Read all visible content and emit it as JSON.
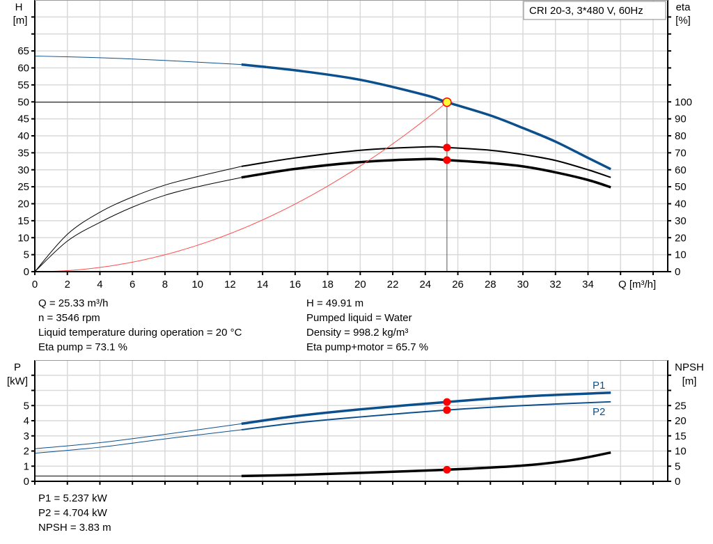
{
  "chart_data": [
    {
      "type": "line",
      "title": "CRI 20-3, 3*480 V, 60Hz",
      "xlabel": "Q [m³/h]",
      "ylabel_left": [
        "H",
        "[m]"
      ],
      "ylabel_right": [
        "eta",
        "[%]"
      ],
      "xlim": [
        0,
        38.9
      ],
      "ylim_left": [
        0,
        80
      ],
      "ylim_right": [
        0,
        160
      ],
      "grid": true,
      "x_ticks": [
        0,
        2,
        4,
        6,
        8,
        10,
        12,
        14,
        16,
        18,
        20,
        22,
        24,
        26,
        28,
        30,
        32,
        34
      ],
      "y_ticks_left": [
        0,
        5,
        10,
        15,
        20,
        25,
        30,
        35,
        40,
        45,
        50,
        55,
        60,
        65
      ],
      "y_ticks_right": [
        0,
        10,
        20,
        30,
        40,
        50,
        60,
        70,
        80,
        90,
        100
      ],
      "series": [
        {
          "id": "H",
          "axis": "left",
          "color": "#0b4f8c",
          "thin_until": 12.7,
          "x": [
            0,
            4,
            8,
            12.7,
            16,
            20,
            24,
            25.33,
            28,
            30,
            32,
            34,
            35.4
          ],
          "y": [
            63.5,
            63.0,
            62.2,
            61.0,
            59.3,
            56.5,
            52.0,
            49.91,
            46.0,
            42.3,
            38.3,
            33.5,
            30.2
          ]
        },
        {
          "id": "eta_pump",
          "axis": "right",
          "color": "#000000",
          "thin_until": 12.7,
          "x": [
            0,
            2,
            4,
            6,
            8,
            10,
            12.7,
            16,
            20,
            24,
            25.33,
            28,
            30,
            32,
            34,
            35.4
          ],
          "y": [
            0,
            22,
            35,
            44,
            51,
            56,
            62,
            67,
            71.5,
            73.5,
            73.1,
            71.5,
            69,
            65.5,
            60,
            55.5
          ]
        },
        {
          "id": "eta_pump_motor",
          "axis": "right",
          "color": "#000000",
          "thin_until": 12.7,
          "bold": true,
          "x": [
            0,
            2,
            4,
            6,
            8,
            10,
            12.7,
            16,
            20,
            24,
            25.33,
            28,
            30,
            32,
            34,
            35.4
          ],
          "y": [
            0,
            18,
            29,
            38,
            45,
            50,
            55.5,
            60.5,
            64.5,
            66.3,
            65.7,
            64,
            62,
            58.5,
            54,
            49.7
          ]
        },
        {
          "id": "system_curve",
          "axis": "left",
          "color": "#ff4d4d",
          "type": "parabola",
          "through": [
            25.33,
            49.91
          ]
        }
      ],
      "operating_point": {
        "Q": 25.33,
        "H": 49.91,
        "eta_pump": 73.1,
        "eta_pump_motor": 65.7
      }
    },
    {
      "type": "line",
      "ylabel_left": [
        "P",
        "[kW]"
      ],
      "ylabel_right": [
        "NPSH",
        "[m]"
      ],
      "xlim": [
        0,
        38.9
      ],
      "ylim_left": [
        0,
        8
      ],
      "ylim_right": [
        0,
        40
      ],
      "grid": true,
      "y_ticks_left": [
        0,
        1,
        2,
        3,
        4,
        5
      ],
      "y_ticks_right": [
        0,
        5,
        10,
        15,
        20,
        25
      ],
      "series": [
        {
          "id": "P1",
          "name": "P1",
          "axis": "left",
          "color": "#0b4f8c",
          "thin_until": 12.7,
          "bold": true,
          "x": [
            0,
            4,
            8,
            12.7,
            16,
            20,
            25.33,
            30,
            35.4
          ],
          "y": [
            2.15,
            2.55,
            3.1,
            3.8,
            4.3,
            4.75,
            5.237,
            5.6,
            5.85
          ]
        },
        {
          "id": "P2",
          "name": "P2",
          "axis": "left",
          "color": "#0b4f8c",
          "thin_until": 12.7,
          "x": [
            0,
            4,
            8,
            12.7,
            16,
            20,
            25.33,
            30,
            35.4
          ],
          "y": [
            1.85,
            2.25,
            2.8,
            3.4,
            3.85,
            4.25,
            4.704,
            5.0,
            5.25
          ]
        },
        {
          "id": "NPSH",
          "axis": "right",
          "color": "#000000",
          "thin_until": 12.7,
          "bold": true,
          "x": [
            0,
            12.7,
            16,
            20,
            25.33,
            30,
            33,
            35.4
          ],
          "y": [
            1.75,
            1.75,
            2.1,
            2.8,
            3.83,
            5.2,
            7.0,
            9.5
          ]
        }
      ],
      "operating_point": {
        "Q": 25.33,
        "P1": 5.237,
        "P2": 4.704,
        "NPSH": 3.83
      }
    }
  ],
  "info_top": {
    "left": [
      "Q = 25.33 m³/h",
      "n = 3546 rpm",
      "Liquid temperature during operation = 20 °C",
      "Eta pump = 73.1 %"
    ],
    "right": [
      "H = 49.91 m",
      "Pumped liquid = Water",
      "Density = 998.2 kg/m³",
      "Eta pump+motor = 65.7 %"
    ]
  },
  "info_bottom": [
    "P1 = 5.237 kW",
    "P2 = 4.704 kW",
    "NPSH = 3.83 m"
  ],
  "colors": {
    "head": "#0b4f8c",
    "point": "#ff0000",
    "op_point": "#ffff33",
    "system": "#ff4d4d"
  }
}
